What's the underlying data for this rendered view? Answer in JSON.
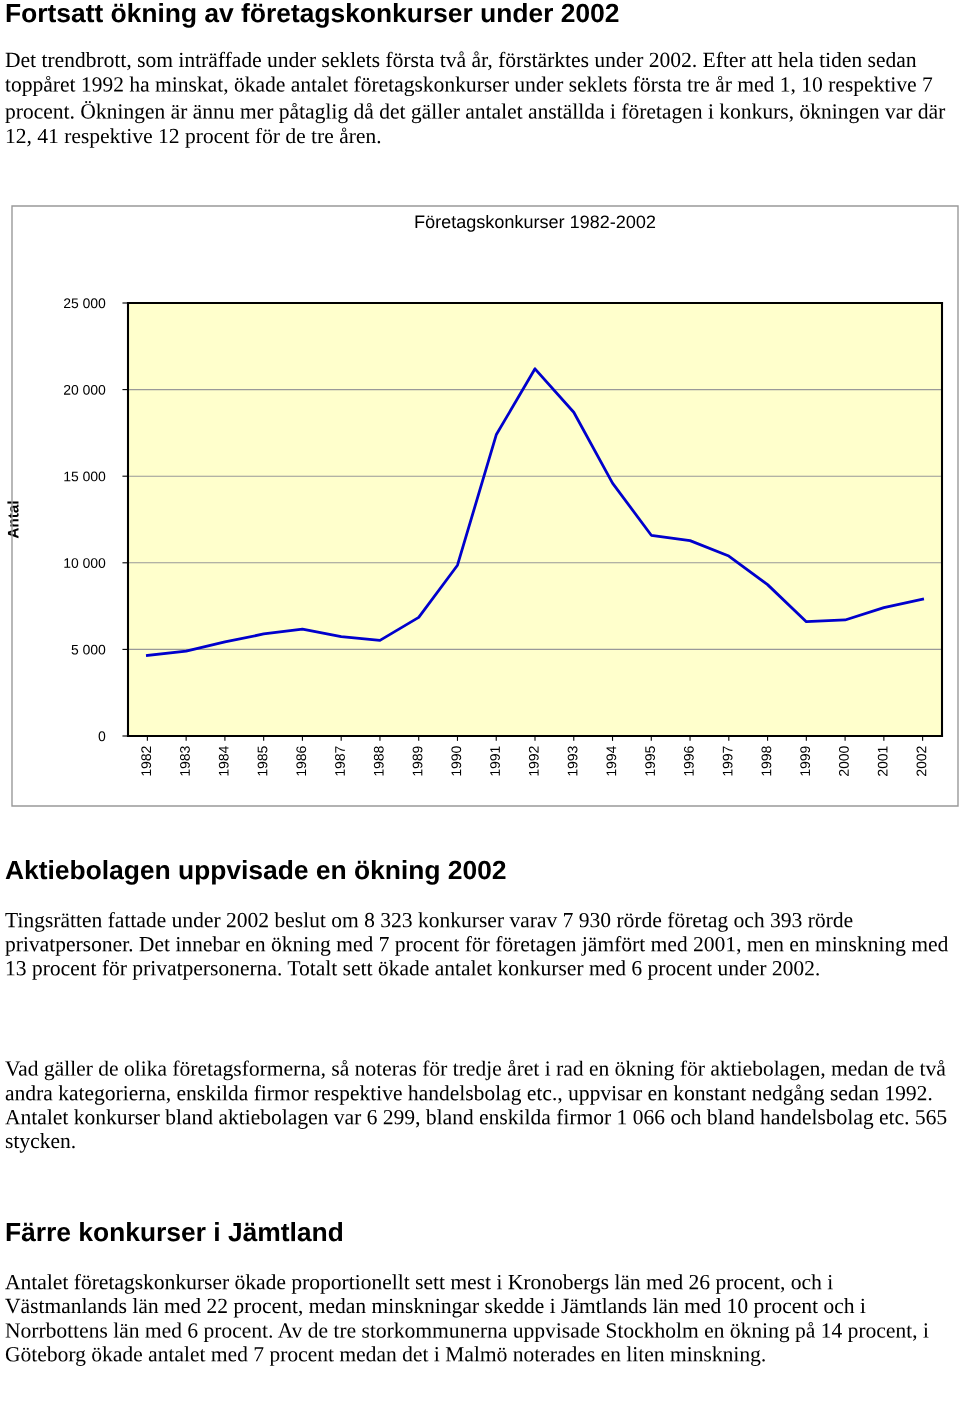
{
  "chart_data": {
    "type": "line",
    "title": "Företagskonkurser 1982-2002",
    "ylabel": "Antal",
    "categories": [
      "1982",
      "1983",
      "1984",
      "1985",
      "1986",
      "1987",
      "1988",
      "1989",
      "1990",
      "1991",
      "1992",
      "1993",
      "1994",
      "1995",
      "1996",
      "1997",
      "1998",
      "1999",
      "2000",
      "2001",
      "2002"
    ],
    "series": [
      {
        "color": "#0000cc",
        "values": [
          4650,
          4900,
          5430,
          5890,
          6170,
          5740,
          5520,
          6850,
          9860,
          17390,
          21200,
          18690,
          14600,
          11590,
          11280,
          10390,
          8740,
          6600,
          6700,
          7410,
          7900
        ]
      }
    ],
    "ylim": [
      0,
      25000
    ],
    "yticks": [
      0,
      {
        "value": 5000,
        "label": "5 000"
      },
      {
        "value": 10000,
        "label": "10 000"
      },
      {
        "value": 15000,
        "label": "15 000"
      },
      {
        "value": 20000,
        "label": "20 000"
      },
      {
        "value": 25000,
        "label": "25 000"
      }
    ],
    "grid": "y",
    "legend": false,
    "marker": "none",
    "line_style": "solid",
    "annotations": [
      "Fortsatt ökning av företagskonkurser under 2002",
      "Det trendbrott, som inträffade under seklets första två år, förstärktes under 2002. Efter att hela tiden sedan toppåret 1992 ha minskat, ökade antalet företagskonkurser under seklets första tre år med 1, 10 respektive 7 procent. Ökningen är ännu mer påtaglig då det gäller antalet anställda i företagen i konkurs, ökningen var där 12, 41 respektive 12 procent för de tre åren.",
      "Aktiebolagen uppvisade en ökning 2002",
      "Tingsrätten fattade under 2002 beslut om 8 323 konkurser varav 7 930 rörde företag och 393 rörde privatpersoner. Det innebar en ökning med 7 procent för företagen jämfört med 2001, men en minskning med 13 procent för privatpersonerna. Totalt sett ökade antalet konkurser med 6 procent under 2002.",
      "Vad gäller de olika företagsformerna, så noteras för tredje året i rad en ökning för aktiebolagen, medan de två andra kategorierna, enskilda firmor respektive handelsbolag etc., uppvisar en konstant nedgång sedan 1992. Antalet konkurser bland aktiebolagen var 6 299, bland enskilda firmor 1 066 och bland handelsbolag etc. 565 stycken.",
      "Färre konkurser i Jämtland",
      "Antalet företagskonkurser ökade proportionellt sett mest i Kronobergs län med 26 procent, och i Västmanlands län med 22 procent, medan minskningar skedde i Jämtlands län med 10 procent och i Norrbottens län med 6 procent. Av de tre storkommunerna uppvisade Stockholm en ökning på 14 procent, i Göteborg ökade antalet med 7 procent medan det i Malmö noterades en liten minskning."
    ]
  }
}
